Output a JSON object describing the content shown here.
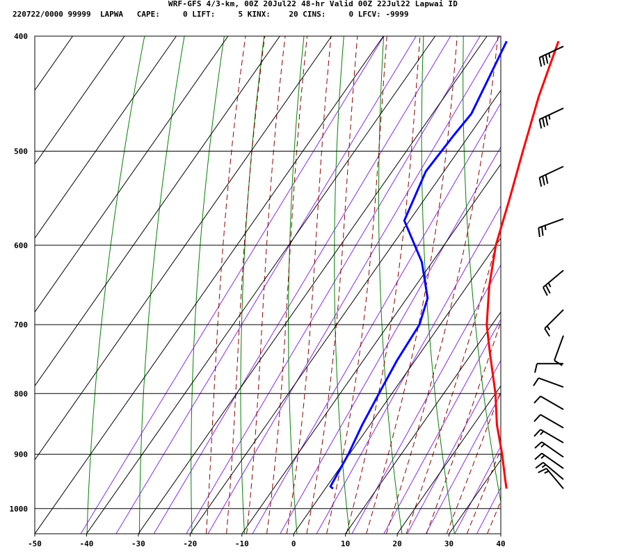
{
  "header": {
    "title": "WRF-GFS 4/3-km, 00Z 20Jul22 48-hr Valid 00Z 22Jul22 Lapwai ID",
    "subtitle": "220722/0000 99999  LAPWA   CAPE:     0 LIFT:     5 KINX:    20 CINS:     0 LFCV: -9999"
  },
  "colors": {
    "temperature": "#ff0000",
    "dewpoint": "#0000ff",
    "dry_adiabat": "#008000",
    "moist_adiabat": "#8b0000",
    "mixing_ratio": "#8a2be2",
    "grid": "#000000"
  },
  "chart_data": {
    "type": "line",
    "title": "WRF-GFS 4/3-km, 00Z 20Jul22 48-hr Valid 00Z 22Jul22 Lapwai ID",
    "xlabel": "",
    "ylabel": "",
    "x_scale": "skew-T temperature (deg C)",
    "y_scale": "log pressure (hPa)",
    "xlim": [
      -50,
      40
    ],
    "ylim": [
      1050,
      400
    ],
    "x_ticks": [
      -50,
      -40,
      -30,
      -20,
      -10,
      0,
      10,
      20,
      30,
      40
    ],
    "x_tick_labels": [
      "-50",
      "-40",
      "-30",
      "-20",
      "-10",
      "0",
      "10",
      "20",
      "30",
      "40"
    ],
    "y_ticks": [
      400,
      500,
      600,
      700,
      800,
      900,
      1000
    ],
    "y_tick_labels": [
      "400",
      "500",
      "600",
      "700",
      "800",
      "900",
      "1000"
    ],
    "grid": true,
    "series": [
      {
        "role": "temperature",
        "points": [
          {
            "p": 962,
            "t": 35.0
          },
          {
            "p": 945,
            "t": 33.5
          },
          {
            "p": 900,
            "t": 29.5
          },
          {
            "p": 850,
            "t": 24.5
          },
          {
            "p": 800,
            "t": 20.0
          },
          {
            "p": 740,
            "t": 13.5
          },
          {
            "p": 700,
            "t": 9.0
          },
          {
            "p": 650,
            "t": 4.3
          },
          {
            "p": 600,
            "t": 0.0
          },
          {
            "p": 550,
            "t": -3.5
          },
          {
            "p": 500,
            "t": -7.5
          },
          {
            "p": 450,
            "t": -11.8
          },
          {
            "p": 404,
            "t": -15.5
          }
        ]
      },
      {
        "role": "dewpoint",
        "points": [
          {
            "p": 962,
            "t": 1.5
          },
          {
            "p": 958,
            "t": 0.7
          },
          {
            "p": 900,
            "t": -0.2
          },
          {
            "p": 850,
            "t": -1.5
          },
          {
            "p": 800,
            "t": -2.5
          },
          {
            "p": 750,
            "t": -3.5
          },
          {
            "p": 700,
            "t": -4.0
          },
          {
            "p": 665,
            "t": -6.0
          },
          {
            "p": 620,
            "t": -12.0
          },
          {
            "p": 572,
            "t": -21.0
          },
          {
            "p": 520,
            "t": -23.5
          },
          {
            "p": 485,
            "t": -23.0
          },
          {
            "p": 465,
            "t": -22.5
          },
          {
            "p": 404,
            "t": -25.5
          }
        ]
      }
    ],
    "wind_barbs": [
      {
        "p": 408,
        "dir": 245,
        "speed_kt": 35
      },
      {
        "p": 460,
        "dir": 245,
        "speed_kt": 35
      },
      {
        "p": 515,
        "dir": 245,
        "speed_kt": 30
      },
      {
        "p": 570,
        "dir": 250,
        "speed_kt": 25
      },
      {
        "p": 630,
        "dir": 230,
        "speed_kt": 25
      },
      {
        "p": 680,
        "dir": 225,
        "speed_kt": 15
      },
      {
        "p": 715,
        "dir": 200,
        "speed_kt": 10
      },
      {
        "p": 755,
        "dir": 270,
        "speed_kt": 10
      },
      {
        "p": 790,
        "dir": 290,
        "speed_kt": 10
      },
      {
        "p": 825,
        "dir": 300,
        "speed_kt": 10
      },
      {
        "p": 855,
        "dir": 300,
        "speed_kt": 10
      },
      {
        "p": 880,
        "dir": 300,
        "speed_kt": 15
      },
      {
        "p": 905,
        "dir": 305,
        "speed_kt": 15
      },
      {
        "p": 925,
        "dir": 305,
        "speed_kt": 15
      },
      {
        "p": 945,
        "dir": 310,
        "speed_kt": 15
      },
      {
        "p": 962,
        "dir": 320,
        "speed_kt": 15
      }
    ]
  }
}
